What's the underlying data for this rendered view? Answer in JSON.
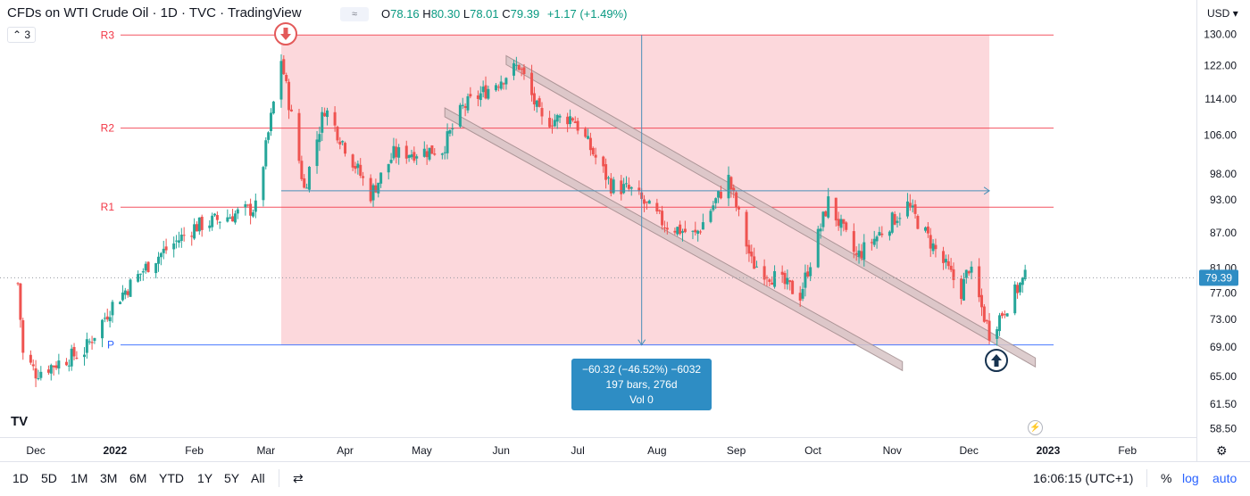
{
  "header": {
    "title": "CFDs on WTI Crude Oil · 1D · TVC · TradingView",
    "legend_chip": "≈",
    "ohlc": {
      "o_label": "O",
      "o": "78.16",
      "h_label": "H",
      "h": "80.30",
      "l_label": "L",
      "l": "78.01",
      "c_label": "C",
      "c": "79.39",
      "change": "+1.17 (+1.49%)"
    },
    "currency": "USD",
    "collapse_label": "3"
  },
  "colors": {
    "up": "#26a69a",
    "down": "#ef5350",
    "zone_fill": "#fcd8dc",
    "pivot_red": "#f23645",
    "pivot_blue": "#2962ff",
    "measure_label_bg": "#2e8dc4",
    "channel_fill": "#d8c5c6"
  },
  "chart_data": {
    "type": "candlestick",
    "title": "CFDs on WTI Crude Oil · 1D · TVC · TradingView",
    "y_axis": {
      "ticks": [
        "130.00",
        "122.00",
        "114.00",
        "106.00",
        "98.00",
        "93.00",
        "87.00",
        "81.00",
        "77.00",
        "73.00",
        "69.00",
        "65.00",
        "61.50",
        "58.50"
      ],
      "scale": "log",
      "ylim": [
        57.5,
        132
      ]
    },
    "x_axis": {
      "labels": [
        "Dec",
        "2022",
        "Feb",
        "Mar",
        "Apr",
        "May",
        "Jun",
        "Jul",
        "Aug",
        "Sep",
        "Oct",
        "Nov",
        "Dec",
        "2023",
        "Feb"
      ]
    },
    "last_price_label": "79.39",
    "last_price": 79.39,
    "pivots": [
      {
        "label": "R3",
        "value": 129.8
      },
      {
        "label": "R2",
        "value": 107.5
      },
      {
        "label": "R1",
        "value": 91.6
      },
      {
        "label": "P",
        "value": 69.3
      }
    ],
    "price_path": [
      {
        "date": "2021-11-24",
        "close": 78.5
      },
      {
        "date": "2021-11-26",
        "close": 68.0
      },
      {
        "date": "2021-12-01",
        "close": 65.5
      },
      {
        "date": "2021-12-20",
        "close": 68.5
      },
      {
        "date": "2021-12-31",
        "close": 75.2
      },
      {
        "date": "2022-01-15",
        "close": 82.0
      },
      {
        "date": "2022-02-01",
        "close": 88.0
      },
      {
        "date": "2022-02-25",
        "close": 91.5
      },
      {
        "date": "2022-03-07",
        "close": 123.7
      },
      {
        "date": "2022-03-16",
        "close": 95.0
      },
      {
        "date": "2022-03-24",
        "close": 112.0
      },
      {
        "date": "2022-04-11",
        "close": 94.0
      },
      {
        "date": "2022-04-20",
        "close": 102.0
      },
      {
        "date": "2022-05-09",
        "close": 103.0
      },
      {
        "date": "2022-05-17",
        "close": 112.0
      },
      {
        "date": "2022-06-08",
        "close": 122.1
      },
      {
        "date": "2022-06-17",
        "close": 109.0
      },
      {
        "date": "2022-06-29",
        "close": 110.0
      },
      {
        "date": "2022-07-14",
        "close": 95.8
      },
      {
        "date": "2022-07-22",
        "close": 94.7
      },
      {
        "date": "2022-08-04",
        "close": 88.5
      },
      {
        "date": "2022-08-16",
        "close": 86.5
      },
      {
        "date": "2022-08-29",
        "close": 97.0
      },
      {
        "date": "2022-09-07",
        "close": 81.9
      },
      {
        "date": "2022-09-26",
        "close": 76.7
      },
      {
        "date": "2022-10-07",
        "close": 92.6
      },
      {
        "date": "2022-10-18",
        "close": 82.8
      },
      {
        "date": "2022-11-07",
        "close": 92.0
      },
      {
        "date": "2022-11-28",
        "close": 77.2
      },
      {
        "date": "2022-12-01",
        "close": 81.2
      },
      {
        "date": "2022-12-09",
        "close": 71.0
      },
      {
        "date": "2022-12-21",
        "close": 78.3
      },
      {
        "date": "2022-12-23",
        "close": 79.39
      }
    ],
    "measure": {
      "line1": "−60.32 (−46.52%) −6032",
      "line2": "197 bars, 276d",
      "line3": "Vol 0"
    }
  },
  "footer": {
    "ranges": [
      "1D",
      "5D",
      "1M",
      "3M",
      "6M",
      "YTD",
      "1Y",
      "5Y",
      "All"
    ],
    "time": "16:06:15 (UTC+1)",
    "pct": "%",
    "log": "log",
    "auto": "auto"
  }
}
